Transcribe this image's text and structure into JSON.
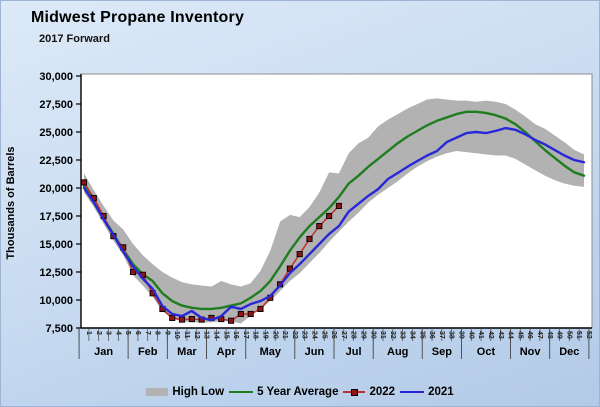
{
  "header": {
    "title": "Midwest Propane Inventory",
    "subtitle": "2017 Forward"
  },
  "y_axis": {
    "title": "Thousands of Barrels",
    "tick_labels": [
      "30,000",
      "27,500",
      "25,000",
      "22,500",
      "20,000",
      "17,500",
      "15,000",
      "12,500",
      "10,000",
      "7,500"
    ]
  },
  "legend": {
    "items": [
      {
        "label": "High Low"
      },
      {
        "label": "5 Year Average"
      },
      {
        "label": "2022"
      },
      {
        "label": "2021"
      }
    ]
  },
  "chart_data": {
    "type": "line",
    "title": "Midwest Propane Inventory",
    "subtitle": "2017 Forward",
    "xlabel": "",
    "ylabel": "Thousands of Barrels",
    "ylim": [
      7500,
      30000
    ],
    "y_tick_step": 2500,
    "grid": false,
    "legend_position": "bottom",
    "x_unit": "week_of_year",
    "x": [
      1,
      2,
      3,
      4,
      5,
      6,
      7,
      8,
      9,
      10,
      11,
      12,
      13,
      14,
      15,
      16,
      17,
      18,
      19,
      20,
      21,
      22,
      23,
      24,
      25,
      26,
      27,
      28,
      29,
      30,
      31,
      32,
      33,
      34,
      35,
      36,
      37,
      38,
      39,
      40,
      41,
      42,
      43,
      44,
      45,
      46,
      47,
      48,
      49,
      50,
      51,
      52
    ],
    "months": [
      {
        "label": "Jan",
        "start": 1,
        "end": 5
      },
      {
        "label": "Feb",
        "start": 6,
        "end": 9
      },
      {
        "label": "Mar",
        "start": 10,
        "end": 13
      },
      {
        "label": "Apr",
        "start": 14,
        "end": 17
      },
      {
        "label": "May",
        "start": 18,
        "end": 22
      },
      {
        "label": "Jun",
        "start": 23,
        "end": 26
      },
      {
        "label": "Jul",
        "start": 27,
        "end": 30
      },
      {
        "label": "Aug",
        "start": 31,
        "end": 35
      },
      {
        "label": "Sep",
        "start": 36,
        "end": 39
      },
      {
        "label": "Oct",
        "start": 40,
        "end": 44
      },
      {
        "label": "Nov",
        "start": 45,
        "end": 48
      },
      {
        "label": "Dec",
        "start": 49,
        "end": 52
      }
    ],
    "band": {
      "name": "High Low",
      "color": "#b2b2b2",
      "high": [
        21300,
        19800,
        18400,
        17100,
        16300,
        15000,
        14000,
        13200,
        12500,
        12000,
        11600,
        11400,
        11300,
        11200,
        11700,
        11400,
        11200,
        11500,
        12600,
        14400,
        17000,
        17600,
        17400,
        18300,
        19600,
        21400,
        21300,
        23100,
        24000,
        24500,
        25500,
        26100,
        26600,
        27100,
        27500,
        27900,
        28000,
        27900,
        27800,
        27800,
        27700,
        27800,
        27700,
        27500,
        27000,
        26400,
        25700,
        25300,
        24700,
        24100,
        23400,
        23000
      ],
      "low": [
        19600,
        18300,
        16800,
        15300,
        14000,
        12200,
        11300,
        10300,
        9000,
        8300,
        8100,
        8000,
        8000,
        8000,
        8100,
        8100,
        7900,
        8600,
        9200,
        9900,
        10800,
        11700,
        12400,
        13300,
        14200,
        15200,
        16100,
        17000,
        17800,
        18700,
        19400,
        20000,
        20600,
        21300,
        21900,
        22400,
        22800,
        23100,
        23300,
        23200,
        23100,
        23000,
        22900,
        22900,
        22600,
        22100,
        21600,
        21100,
        20700,
        20400,
        20200,
        20100
      ]
    },
    "series": [
      {
        "name": "5 Year Average",
        "style": "line",
        "color": "#1f7d1f",
        "values": [
          20200,
          18800,
          17300,
          15900,
          14500,
          13200,
          12300,
          11700,
          10600,
          9900,
          9500,
          9300,
          9200,
          9200,
          9300,
          9500,
          9700,
          10200,
          10800,
          11700,
          13000,
          14400,
          15600,
          16600,
          17400,
          18200,
          19200,
          20400,
          21100,
          21900,
          22600,
          23300,
          24000,
          24600,
          25100,
          25600,
          26000,
          26300,
          26600,
          26800,
          26800,
          26700,
          26500,
          26200,
          25700,
          25000,
          24200,
          23400,
          22700,
          22000,
          21400,
          21100
        ]
      },
      {
        "name": "2022",
        "style": "line-marker",
        "color": "#c22f2f",
        "marker_color": "#8f1515",
        "values": [
          20500,
          19100,
          17500,
          15700,
          14700,
          12500,
          12250,
          10600,
          9200,
          8400,
          8250,
          8300,
          8250,
          8400,
          8300,
          8150,
          8750,
          8750,
          9200,
          10200,
          11400,
          12800,
          14100,
          15450,
          16600,
          17500,
          18400
        ]
      },
      {
        "name": "2021",
        "style": "line",
        "color": "#2828d8",
        "values": [
          20000,
          18700,
          17200,
          15800,
          14300,
          13000,
          11900,
          11000,
          9460,
          8750,
          8570,
          9020,
          8390,
          8210,
          8570,
          9400,
          9200,
          9640,
          9910,
          10360,
          11300,
          12400,
          13200,
          14100,
          15000,
          15900,
          16600,
          17900,
          18600,
          19300,
          19900,
          20800,
          21340,
          21900,
          22410,
          22900,
          23300,
          24100,
          24500,
          24900,
          25000,
          24900,
          25100,
          25350,
          25200,
          24800,
          24300,
          23900,
          23400,
          22900,
          22500,
          22300
        ]
      }
    ]
  }
}
